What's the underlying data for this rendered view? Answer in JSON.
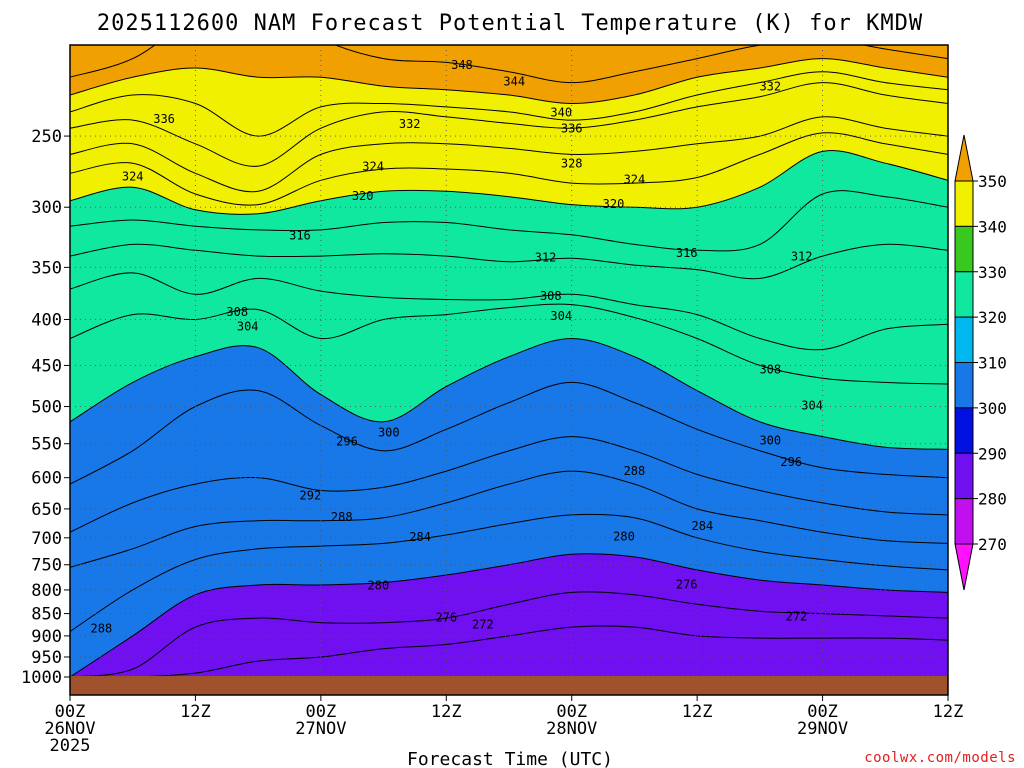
{
  "chart_data": {
    "type": "contour",
    "title": "2025112600 NAM Forecast Potential Temperature (K) for KMDW",
    "xlabel": "Forecast Time (UTC)",
    "ylabel": "",
    "credit": "coolwx.com/models",
    "x_ticks": [
      {
        "hour": 0,
        "line1": "00Z",
        "line2": "26NOV",
        "line3": "2025"
      },
      {
        "hour": 12,
        "line1": "12Z",
        "line2": "",
        "line3": ""
      },
      {
        "hour": 24,
        "line1": "00Z",
        "line2": "27NOV",
        "line3": ""
      },
      {
        "hour": 36,
        "line1": "12Z",
        "line2": "",
        "line3": ""
      },
      {
        "hour": 48,
        "line1": "00Z",
        "line2": "28NOV",
        "line3": ""
      },
      {
        "hour": 60,
        "line1": "12Z",
        "line2": "",
        "line3": ""
      },
      {
        "hour": 72,
        "line1": "00Z",
        "line2": "29NOV",
        "line3": ""
      },
      {
        "hour": 84,
        "line1": "12Z",
        "line2": "",
        "line3": ""
      }
    ],
    "xlim_hours": [
      0,
      84
    ],
    "y_ticks": [
      "250",
      "300",
      "350",
      "400",
      "450",
      "500",
      "550",
      "600",
      "650",
      "700",
      "750",
      "800",
      "850",
      "900",
      "950",
      "1000"
    ],
    "y_tick_values": [
      250,
      300,
      350,
      400,
      450,
      500,
      550,
      600,
      650,
      700,
      750,
      800,
      850,
      900,
      950,
      1000
    ],
    "ylim_hpa": [
      200,
      1050
    ],
    "colorbar": {
      "levels": [
        350,
        340,
        330,
        320,
        310,
        300,
        290,
        280,
        270
      ],
      "colors": [
        "#f0a000",
        "#f0f000",
        "#38c820",
        "#10e8a0",
        "#00b8f0",
        "#1878e8",
        "#0010e0",
        "#7010f0",
        "#c010f0",
        "#ff10ff"
      ]
    },
    "fills": [
      {
        "level": 340,
        "color": "#f0f000"
      },
      {
        "level": 330,
        "color": "#38c820"
      },
      {
        "level": 320,
        "color": "#10e8a0"
      },
      {
        "level": 310,
        "color": "#00b8f0"
      },
      {
        "level": 300,
        "color": "#1878e8"
      },
      {
        "level": 290,
        "color": "#0010e0"
      },
      {
        "level": 280,
        "color": "#7010f0"
      },
      {
        "level": 270,
        "color": "#c010f0"
      }
    ],
    "isentropes": [
      {
        "theta": 344,
        "t": [
          0,
          6,
          12,
          18,
          24,
          30,
          36,
          42,
          48,
          54,
          60,
          66,
          72,
          78,
          84
        ],
        "p": [
          215,
          205,
          185,
          178,
          195,
          205,
          207,
          212,
          218,
          212,
          205,
          198,
          195,
          200,
          205
        ]
      },
      {
        "theta": 340,
        "t": [
          0,
          6,
          12,
          18,
          24,
          30,
          36,
          42,
          48,
          54,
          60,
          66,
          72,
          78,
          84
        ],
        "p": [
          225,
          215,
          210,
          215,
          215,
          220,
          222,
          225,
          230,
          225,
          215,
          210,
          205,
          210,
          215
        ]
      },
      {
        "theta": 336,
        "t": [
          0,
          6,
          12,
          18,
          24,
          30,
          36,
          42,
          48,
          54,
          60,
          66,
          72,
          78,
          84
        ],
        "p": [
          235,
          225,
          230,
          250,
          232,
          230,
          232,
          235,
          240,
          235,
          225,
          218,
          212,
          218,
          222
        ]
      },
      {
        "theta": 332,
        "t": [
          0,
          6,
          12,
          18,
          24,
          30,
          36,
          42,
          48,
          54,
          60,
          66,
          72,
          78,
          84
        ],
        "p": [
          245,
          240,
          255,
          270,
          245,
          235,
          238,
          242,
          245,
          240,
          232,
          226,
          218,
          225,
          230
        ]
      },
      {
        "theta": 328,
        "t": [
          0,
          6,
          12,
          18,
          24,
          30,
          36,
          42,
          48,
          54,
          60,
          66,
          72,
          78,
          84
        ],
        "p": [
          262,
          255,
          275,
          288,
          262,
          255,
          255,
          258,
          262,
          260,
          255,
          250,
          238,
          245,
          250
        ]
      },
      {
        "theta": 324,
        "t": [
          0,
          6,
          12,
          18,
          24,
          30,
          36,
          42,
          48,
          54,
          60,
          66,
          72,
          78,
          84
        ],
        "p": [
          275,
          268,
          290,
          298,
          280,
          272,
          272,
          275,
          282,
          282,
          278,
          262,
          248,
          255,
          262
        ]
      },
      {
        "theta": 320,
        "t": [
          0,
          6,
          12,
          18,
          24,
          30,
          36,
          42,
          48,
          54,
          60,
          66,
          72,
          78,
          84
        ],
        "p": [
          295,
          285,
          302,
          305,
          295,
          288,
          288,
          292,
          298,
          300,
          300,
          285,
          260,
          268,
          280
        ]
      },
      {
        "theta": 316,
        "t": [
          0,
          6,
          12,
          18,
          24,
          30,
          36,
          42,
          48,
          54,
          60,
          66,
          72,
          78,
          84
        ],
        "p": [
          315,
          310,
          315,
          318,
          318,
          312,
          312,
          318,
          322,
          330,
          335,
          330,
          290,
          292,
          300
        ]
      },
      {
        "theta": 312,
        "t": [
          0,
          6,
          12,
          18,
          24,
          30,
          36,
          42,
          48,
          54,
          60,
          66,
          72,
          78,
          84
        ],
        "p": [
          340,
          330,
          335,
          340,
          340,
          338,
          340,
          345,
          342,
          348,
          352,
          360,
          340,
          330,
          335
        ]
      },
      {
        "theta": 308,
        "t": [
          0,
          6,
          12,
          18,
          24,
          30,
          36,
          42,
          48,
          54,
          60,
          66,
          72,
          78,
          84
        ],
        "p": [
          370,
          355,
          375,
          360,
          372,
          378,
          380,
          380,
          375,
          385,
          395,
          420,
          432,
          410,
          405
        ]
      },
      {
        "theta": 304,
        "t": [
          0,
          6,
          12,
          18,
          24,
          30,
          36,
          42,
          48,
          54,
          60,
          66,
          72,
          78,
          84
        ],
        "p": [
          420,
          395,
          400,
          390,
          420,
          400,
          395,
          388,
          385,
          398,
          420,
          450,
          465,
          470,
          472
        ]
      },
      {
        "theta": 300,
        "t": [
          0,
          6,
          12,
          18,
          24,
          30,
          36,
          42,
          48,
          54,
          60,
          66,
          72,
          78,
          84
        ],
        "p": [
          520,
          470,
          440,
          430,
          485,
          520,
          475,
          440,
          420,
          440,
          480,
          520,
          540,
          555,
          558
        ]
      },
      {
        "theta": 296,
        "t": [
          0,
          6,
          12,
          18,
          24,
          30,
          36,
          42,
          48,
          54,
          60,
          66,
          72,
          78,
          84
        ],
        "p": [
          610,
          560,
          500,
          480,
          525,
          560,
          530,
          495,
          470,
          495,
          530,
          560,
          585,
          595,
          600
        ]
      },
      {
        "theta": 292,
        "t": [
          0,
          6,
          12,
          18,
          24,
          30,
          36,
          42,
          48,
          54,
          60,
          66,
          72,
          78,
          84
        ],
        "p": [
          690,
          640,
          610,
          600,
          620,
          615,
          590,
          560,
          540,
          560,
          595,
          620,
          640,
          655,
          660
        ]
      },
      {
        "theta": 288,
        "t": [
          0,
          6,
          12,
          18,
          24,
          30,
          36,
          42,
          48,
          54,
          60,
          66,
          72,
          78,
          84
        ],
        "p": [
          755,
          720,
          680,
          670,
          670,
          665,
          640,
          610,
          590,
          610,
          650,
          670,
          690,
          705,
          710
        ]
      },
      {
        "theta": 284,
        "t": [
          0,
          6,
          12,
          18,
          24,
          30,
          36,
          42,
          48,
          54,
          60,
          66,
          72,
          78,
          84
        ],
        "p": [
          890,
          800,
          740,
          720,
          715,
          710,
          695,
          675,
          660,
          665,
          700,
          725,
          740,
          752,
          760
        ]
      },
      {
        "theta": 280,
        "t": [
          0,
          6,
          12,
          18,
          24,
          30,
          36,
          42,
          48,
          54,
          60,
          66,
          72,
          78,
          84
        ],
        "p": [
          1000,
          900,
          810,
          790,
          790,
          785,
          770,
          750,
          730,
          735,
          760,
          780,
          790,
          800,
          805
        ]
      },
      {
        "theta": 276,
        "t": [
          0,
          6,
          12,
          18,
          24,
          30,
          36,
          42,
          48,
          54,
          60,
          66,
          72,
          78,
          84
        ],
        "p": [
          1000,
          980,
          880,
          860,
          870,
          870,
          860,
          830,
          805,
          810,
          830,
          845,
          850,
          855,
          860
        ]
      },
      {
        "theta": 272,
        "t": [
          0,
          6,
          12,
          18,
          24,
          30,
          36,
          42,
          48,
          54,
          60,
          66,
          72,
          78,
          84
        ],
        "p": [
          1000,
          1000,
          990,
          960,
          950,
          930,
          920,
          900,
          880,
          880,
          900,
          905,
          905,
          905,
          910
        ]
      }
    ],
    "contour_labels": [
      {
        "text": "348",
        "t": 37.5,
        "p": 208
      },
      {
        "text": "344",
        "t": 42.5,
        "p": 217
      },
      {
        "text": "340",
        "t": 47,
        "p": 235
      },
      {
        "text": "336",
        "t": 48,
        "p": 245
      },
      {
        "text": "336",
        "t": 9,
        "p": 239
      },
      {
        "text": "332",
        "t": 32.5,
        "p": 242
      },
      {
        "text": "332",
        "t": 67,
        "p": 220
      },
      {
        "text": "328",
        "t": 48,
        "p": 268
      },
      {
        "text": "324",
        "t": 29,
        "p": 270
      },
      {
        "text": "324",
        "t": 54,
        "p": 279
      },
      {
        "text": "324",
        "t": 6,
        "p": 277
      },
      {
        "text": "320",
        "t": 28,
        "p": 291
      },
      {
        "text": "320",
        "t": 52,
        "p": 297
      },
      {
        "text": "316",
        "t": 22,
        "p": 322
      },
      {
        "text": "316",
        "t": 59,
        "p": 337
      },
      {
        "text": "312",
        "t": 45.5,
        "p": 341
      },
      {
        "text": "312",
        "t": 70,
        "p": 340
      },
      {
        "text": "308",
        "t": 46,
        "p": 376
      },
      {
        "text": "308",
        "t": 16,
        "p": 392
      },
      {
        "text": "308",
        "t": 67,
        "p": 454
      },
      {
        "text": "304",
        "t": 47,
        "p": 396
      },
      {
        "text": "304",
        "t": 17,
        "p": 407
      },
      {
        "text": "304",
        "t": 71,
        "p": 498
      },
      {
        "text": "300",
        "t": 30.5,
        "p": 534
      },
      {
        "text": "300",
        "t": 67,
        "p": 545
      },
      {
        "text": "296",
        "t": 26.5,
        "p": 546
      },
      {
        "text": "296",
        "t": 69,
        "p": 576
      },
      {
        "text": "292",
        "t": 23,
        "p": 627
      },
      {
        "text": "288",
        "t": 54,
        "p": 589
      },
      {
        "text": "288",
        "t": 26,
        "p": 663
      },
      {
        "text": "288",
        "t": 3,
        "p": 882
      },
      {
        "text": "284",
        "t": 33.5,
        "p": 698
      },
      {
        "text": "284",
        "t": 60.5,
        "p": 678
      },
      {
        "text": "280",
        "t": 53,
        "p": 697
      },
      {
        "text": "280",
        "t": 29.5,
        "p": 790
      },
      {
        "text": "276",
        "t": 59,
        "p": 788
      },
      {
        "text": "276",
        "t": 36,
        "p": 858
      },
      {
        "text": "272",
        "t": 39.5,
        "p": 873
      },
      {
        "text": "272",
        "t": 69.5,
        "p": 855
      }
    ]
  }
}
